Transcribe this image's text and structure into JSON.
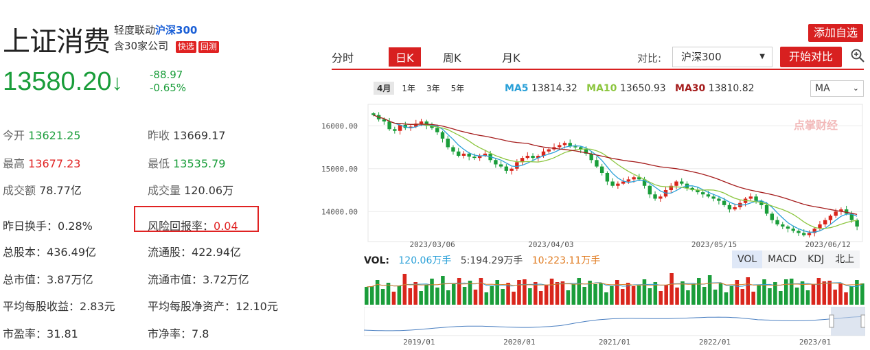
{
  "stock": {
    "name": "上证消费",
    "linkage_prefix": "轻度联动",
    "linkage_index": "沪深300",
    "companies": "含30家公司",
    "tag_fast": "快选",
    "tag_backtest": "回测",
    "price": "13580.20",
    "arrow": "↓",
    "change": "-88.97",
    "change_pct": "-0.65%"
  },
  "stats": [
    {
      "label": "今开",
      "value": "13621.25",
      "color": "green"
    },
    {
      "label": "昨收",
      "value": "13669.17",
      "color": "normal"
    },
    {
      "label": "最高",
      "value": "13677.23",
      "color": "red"
    },
    {
      "label": "最低",
      "value": "13535.79",
      "color": "green"
    },
    {
      "label": "成交额",
      "value": "78.77亿",
      "color": "normal"
    },
    {
      "label": "成交量",
      "value": "120.06万",
      "color": "normal"
    },
    {
      "label": "昨日换手：",
      "value": "0.28%",
      "color": "normal"
    },
    {
      "label": "风险回报率：",
      "value": "0.04",
      "color": "red"
    },
    {
      "label": "总股本：",
      "value": "436.49亿",
      "color": "normal"
    },
    {
      "label": "流通股：",
      "value": "422.94亿",
      "color": "normal"
    },
    {
      "label": "总市值：",
      "value": "3.87万亿",
      "color": "normal"
    },
    {
      "label": "流通市值：",
      "value": "3.72万亿",
      "color": "normal"
    },
    {
      "label": "平均每股收益：",
      "value": "2.83元",
      "color": "normal"
    },
    {
      "label": "平均每股净资产：",
      "value": "12.10元",
      "color": "normal"
    },
    {
      "label": "市盈率：",
      "value": "31.81",
      "color": "normal"
    },
    {
      "label": "市净率：",
      "value": "7.8",
      "color": "normal"
    }
  ],
  "toolbar": {
    "add_label": "添加自选",
    "tabs": [
      "分时",
      "日K",
      "周K",
      "月K"
    ],
    "compare_label": "对比:",
    "compare_value": "沪深300",
    "compare_button": "开始对比",
    "zoom_icon": "zoom-in-icon"
  },
  "periods": [
    "4月",
    "1年",
    "3年",
    "5年"
  ],
  "ma": {
    "ma5_label": "MA5",
    "ma5": "13814.32",
    "ma10_label": "MA10",
    "ma10": "13650.93",
    "ma30_label": "MA30",
    "ma30": "13810.82",
    "select": "MA",
    "colors": {
      "ma5": "#2aa0d8",
      "ma10": "#8cc63f",
      "ma30": "#a51c1c"
    }
  },
  "watermark": "点掌财经",
  "chart_data": {
    "type": "candlestick",
    "y_ticks": [
      "16000.00",
      "15000.00",
      "14000.00"
    ],
    "y_values": [
      16000,
      15000,
      14000
    ],
    "ylim": [
      13300,
      16500
    ],
    "x_ticks": [
      "2023/03/06",
      "2023/04/03",
      "2023/05/15",
      "2023/06/12"
    ],
    "close_series": [
      16250,
      16150,
      16100,
      15920,
      15880,
      16020,
      15950,
      15980,
      16050,
      16100,
      16000,
      15950,
      15850,
      15700,
      15500,
      15400,
      15300,
      15350,
      15280,
      15250,
      15300,
      15350,
      15200,
      15100,
      15050,
      14950,
      15000,
      15150,
      15250,
      15300,
      15250,
      15300,
      15400,
      15450,
      15500,
      15550,
      15600,
      15520,
      15500,
      15450,
      15350,
      15200,
      15050,
      14900,
      14700,
      14600,
      14650,
      14700,
      14750,
      14800,
      14750,
      14600,
      14400,
      14300,
      14350,
      14500,
      14600,
      14700,
      14650,
      14550,
      14500,
      14450,
      14400,
      14350,
      14300,
      14250,
      14150,
      14050,
      14100,
      14200,
      14300,
      14350,
      14250,
      14150,
      13950,
      13800,
      13700,
      13650,
      13600,
      13550,
      13500,
      13450,
      13500,
      13600,
      13700,
      13800,
      13900,
      14000,
      14050,
      13950,
      13800,
      13650
    ],
    "volume": {
      "label": "VOL:",
      "vol": "120.06万手",
      "ma5": "5:194.29万手",
      "ma10": "10:223.11万手",
      "buttons": [
        "VOL",
        "MACD",
        "KDJ",
        "北上"
      ]
    },
    "overview_x_ticks": [
      "2019/01",
      "2020/01",
      "2021/01",
      "2022/01",
      "2023/01"
    ]
  }
}
